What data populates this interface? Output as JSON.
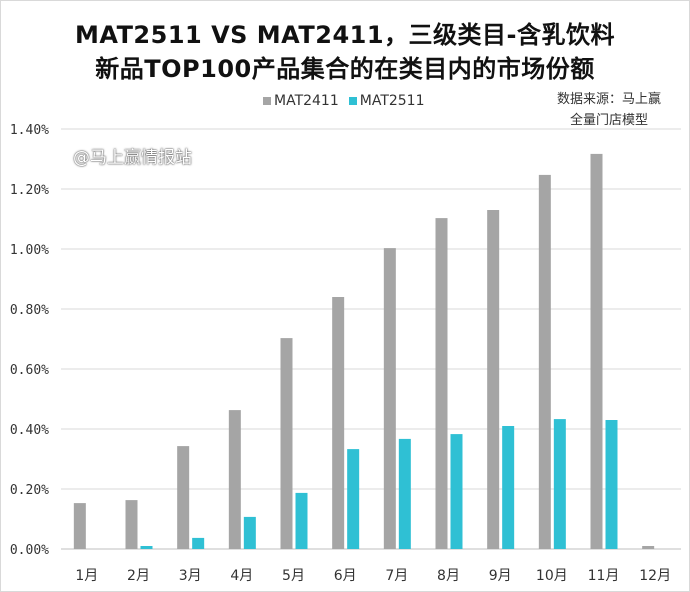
{
  "chart_data": {
    "type": "bar",
    "title": "MAT2511 VS MAT2411，三级类目-含乳饮料",
    "subtitle": "新品TOP100产品集合的在类目内的市场份额",
    "categories": [
      "1月",
      "2月",
      "3月",
      "4月",
      "5月",
      "6月",
      "7月",
      "8月",
      "9月",
      "10月",
      "11月",
      "12月"
    ],
    "series": [
      {
        "name": "MAT2411",
        "color": "#a5a5a5",
        "values": [
          0.153,
          0.163,
          0.343,
          0.463,
          0.703,
          0.84,
          1.003,
          1.103,
          1.13,
          1.247,
          1.317,
          0.01
        ]
      },
      {
        "name": "MAT2511",
        "color": "#2fc0d4",
        "values": [
          0,
          0.01,
          0.037,
          0.107,
          0.187,
          0.333,
          0.367,
          0.383,
          0.41,
          0.433,
          0.43,
          0
        ]
      }
    ],
    "yticks": [
      "0.00%",
      "0.20%",
      "0.40%",
      "0.60%",
      "0.80%",
      "1.00%",
      "1.20%",
      "1.40%"
    ],
    "ylim": [
      0,
      1.4
    ],
    "ylabel": "",
    "xlabel": "",
    "grid": true,
    "legend_position": "top-center"
  },
  "source_note": [
    "数据来源：马上赢",
    "全量门店模型"
  ],
  "watermark": "@马上赢情报站"
}
